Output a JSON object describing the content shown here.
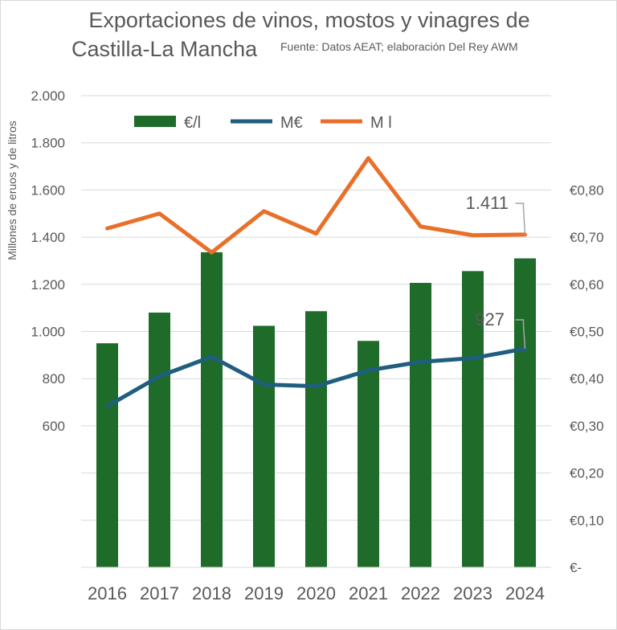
{
  "chart_data": {
    "type": "bar",
    "title_line1": "Exportaciones de vinos, mostos y vinagres de",
    "title_line2": "Castilla-La Mancha",
    "source": "Fuente: Datos AEAT; elaboración Del Rey AWM",
    "ylabel": "Millones de eruos y de litros",
    "categories": [
      "2016",
      "2017",
      "2018",
      "2019",
      "2020",
      "2021",
      "2022",
      "2023",
      "2024"
    ],
    "y_left_ticks": [
      "2.000",
      "1.800",
      "1.600",
      "1.400",
      "1.200",
      "1.000",
      "800",
      "600"
    ],
    "y_left_range": [
      0,
      2000
    ],
    "y_right_ticks": [
      "€-",
      "€0,10",
      "€0,20",
      "€0,30",
      "€0,40",
      "€0,50",
      "€0,60",
      "€0,70",
      "€0,80"
    ],
    "y_right_range": [
      0,
      1.0
    ],
    "series": [
      {
        "name": "€/l",
        "type": "bar",
        "axis": "right",
        "color": "#1e6b2a",
        "values": [
          0.475,
          0.54,
          0.668,
          0.512,
          0.543,
          0.48,
          0.603,
          0.628,
          0.655
        ]
      },
      {
        "name": "M€",
        "type": "line",
        "axis": "left",
        "color": "#1f5e7e",
        "values": [
          683,
          810,
          893,
          775,
          768,
          835,
          871,
          887,
          927
        ]
      },
      {
        "name": "M l",
        "type": "line",
        "axis": "left",
        "color": "#e8702a",
        "values": [
          1437,
          1500,
          1335,
          1510,
          1415,
          1735,
          1445,
          1408,
          1411
        ]
      }
    ],
    "annotations": [
      {
        "series": "M l",
        "index": 8,
        "text": "1.411"
      },
      {
        "series": "M€",
        "index": 8,
        "text": "927"
      }
    ],
    "legend_position": "top",
    "grid": true
  }
}
